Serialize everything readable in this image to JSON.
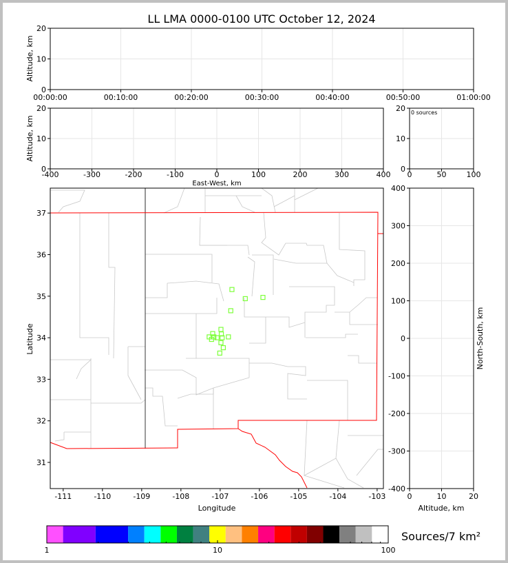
{
  "chart_data": [
    {
      "id": "time-altitude",
      "type": "scatter",
      "title": "LL LMA 0000-0100 UTC October 12, 2024",
      "ylabel": "Altitude, km",
      "xlim": [
        "00:00:00",
        "01:00:00"
      ],
      "ylim": [
        0,
        20
      ],
      "x_tick_labels": [
        "00:00:00",
        "00:10:00",
        "00:20:00",
        "00:30:00",
        "00:40:00",
        "00:50:00",
        "01:00:00"
      ],
      "y_ticks": [
        0,
        10,
        20
      ],
      "grid": true,
      "points": []
    },
    {
      "id": "ew-altitude",
      "type": "scatter",
      "xlabel": "East-West, km",
      "ylabel": "Altitude, km",
      "xlim": [
        -400,
        400
      ],
      "ylim": [
        0,
        20
      ],
      "x_ticks": [
        -400,
        -300,
        -200,
        -100,
        0,
        100,
        200,
        300,
        400
      ],
      "y_ticks": [
        0,
        10,
        20
      ],
      "grid": true,
      "points": []
    },
    {
      "id": "altitude-histogram",
      "type": "bar",
      "annotation": "0 sources",
      "xlim": [
        0,
        100
      ],
      "ylim": [
        0,
        20
      ],
      "x_ticks": [
        0,
        50,
        100
      ],
      "y_ticks": [
        0,
        10,
        20
      ],
      "grid": true,
      "values": []
    },
    {
      "id": "plan-view",
      "type": "scatter",
      "xlabel": "Longitude",
      "ylabel": "Latitude",
      "xlim": [
        -111.33,
        -102.84
      ],
      "ylim": [
        30.37,
        37.6
      ],
      "x_ticks": [
        -111,
        -110,
        -109,
        -108,
        -107,
        -106,
        -105,
        -104,
        -103
      ],
      "y_ticks": [
        31,
        32,
        33,
        34,
        35,
        36,
        37
      ],
      "marker": "hollow-square",
      "marker_color": "#7dff3a",
      "points": [
        [
          -106.7,
          35.16
        ],
        [
          -106.36,
          34.94
        ],
        [
          -105.91,
          34.97
        ],
        [
          -106.73,
          34.65
        ],
        [
          -106.98,
          34.2
        ],
        [
          -107.19,
          34.1
        ],
        [
          -106.97,
          34.09
        ],
        [
          -107.28,
          34.02
        ],
        [
          -107.16,
          34.02
        ],
        [
          -107.08,
          34.0
        ],
        [
          -106.95,
          34.0
        ],
        [
          -106.79,
          34.02
        ],
        [
          -107.22,
          33.96
        ],
        [
          -106.98,
          33.88
        ],
        [
          -106.92,
          33.76
        ],
        [
          -107.01,
          33.63
        ]
      ]
    },
    {
      "id": "ns-altitude",
      "type": "scatter",
      "xlabel": "Altitude, km",
      "ylabel": "North-South, km",
      "xlim": [
        0,
        20
      ],
      "ylim": [
        -400,
        400
      ],
      "x_ticks": [
        0,
        10,
        20
      ],
      "y_ticks": [
        -400,
        -300,
        -200,
        -100,
        0,
        100,
        200,
        300,
        400
      ],
      "grid": true,
      "points": []
    }
  ],
  "colorbar": {
    "label": "Sources/7 km²",
    "scale": "log",
    "range": [
      1,
      100
    ],
    "tick_labels": [
      "1",
      "10",
      "100"
    ],
    "colors": [
      "#ff50ff",
      "#8000ff",
      "#0000ff",
      "#0080ff",
      "#00ffff",
      "#00ff00",
      "#008040",
      "#408080",
      "#ffff00",
      "#ffc080",
      "#ff8000",
      "#ff0080",
      "#ff0000",
      "#c00000",
      "#800000",
      "#000000",
      "#808080",
      "#c0c0c0",
      "#ffffff"
    ]
  },
  "map_colors": {
    "state_border": "#ff0000",
    "county": "#c8c8c8",
    "az_nm_border": "#000000"
  }
}
